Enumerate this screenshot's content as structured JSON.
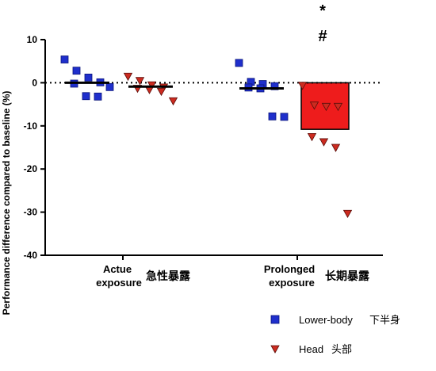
{
  "chart_data": {
    "type": "scatter",
    "ylabel": "Performance difference compared to baseline (%)",
    "ylim": [
      -40,
      10
    ],
    "yticks": [
      10,
      0,
      -10,
      -20,
      -30,
      -40
    ],
    "categories": [
      {
        "line1": "Actue",
        "line2": "exposure",
        "cn": "急性暴露"
      },
      {
        "line1": "Prolonged",
        "line2": "exposure",
        "cn": "长期暴露"
      }
    ],
    "reference_line": 0,
    "series": [
      {
        "name": "Lower-body",
        "name_cn": "下半身",
        "marker": "square",
        "color": "#1f2fcc",
        "mean": [
          0,
          -1.3
        ],
        "points": [
          [
            5.4,
            2.8,
            1.2,
            0.1,
            -0.2,
            -3.1,
            -3.2,
            -1.0
          ],
          [
            4.6,
            0.2,
            -0.3,
            -0.8,
            -1.1,
            -1.3,
            -7.8,
            -7.9
          ]
        ]
      },
      {
        "name": "Head",
        "name_cn": "头部",
        "marker": "triangle-down",
        "color": "#cc2b20",
        "bar_color": "#ee1c1c",
        "bar_values": [
          null,
          -10.8
        ],
        "mean": [
          -0.9,
          null
        ],
        "points": [
          [
            1.5,
            0.5,
            -0.5,
            -1.0,
            -1.3,
            -1.6,
            -2.0,
            -4.2
          ],
          [
            -0.6,
            -5.2,
            -5.5,
            -5.5,
            -12.5,
            -13.7,
            -15.0,
            -30.3
          ]
        ]
      }
    ],
    "annotations": [
      "*",
      "#"
    ]
  }
}
